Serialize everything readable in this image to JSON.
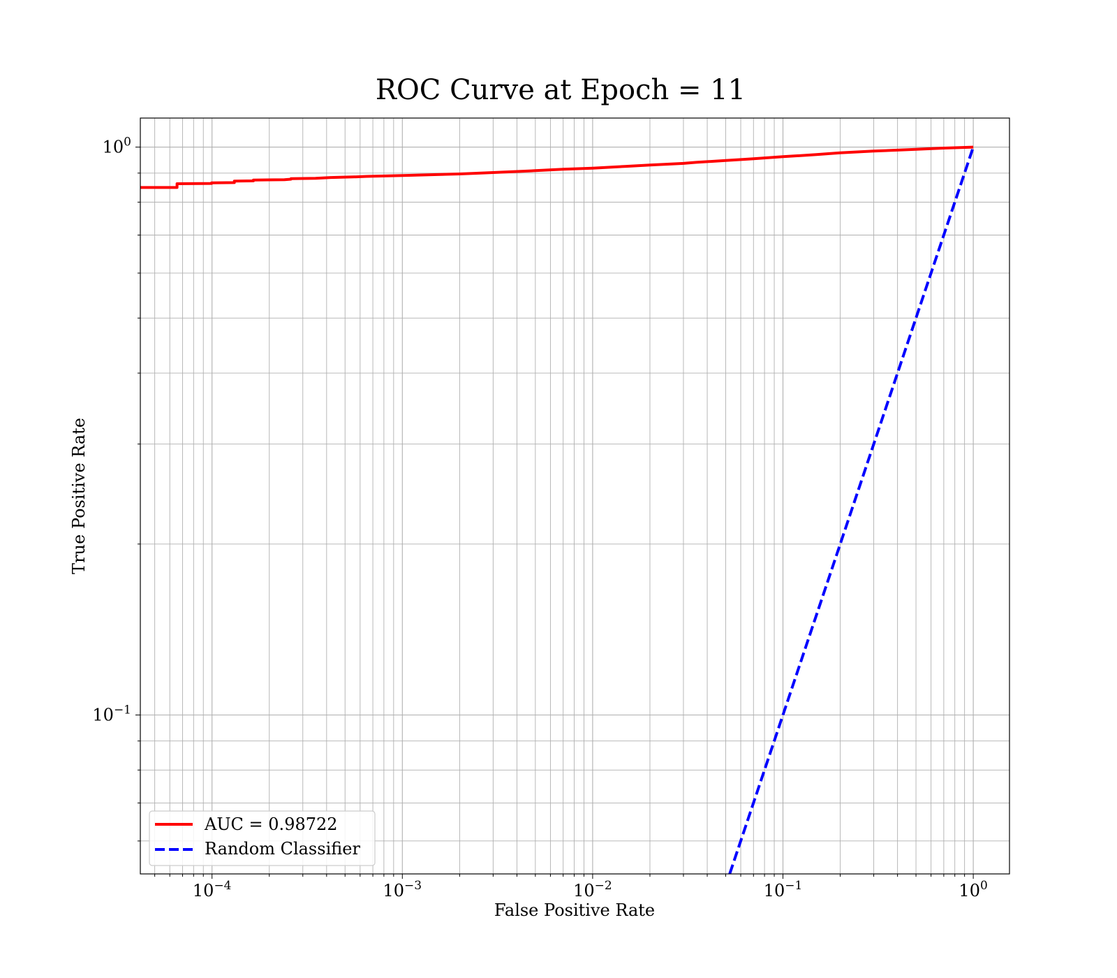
{
  "chart_data": {
    "type": "line",
    "title": "ROC Curve at Epoch = 11",
    "xlabel": "False Positive Rate",
    "ylabel": "True Positive Rate",
    "xscale": "log",
    "yscale": "log",
    "xlim": [
      4.2e-05,
      1.55
    ],
    "ylim": [
      0.0525,
      1.125
    ],
    "grid": true,
    "grid_minor": true,
    "legend_position": "lower-left",
    "x_ticks": [
      {
        "value": 0.0001,
        "base": "10",
        "exp": "−4"
      },
      {
        "value": 0.001,
        "base": "10",
        "exp": "−3"
      },
      {
        "value": 0.01,
        "base": "10",
        "exp": "−2"
      },
      {
        "value": 0.1,
        "base": "10",
        "exp": "−1"
      },
      {
        "value": 1,
        "base": "10",
        "exp": "0"
      }
    ],
    "y_ticks": [
      {
        "value": 0.1,
        "base": "10",
        "exp": "−1"
      },
      {
        "value": 1,
        "base": "10",
        "exp": "0"
      }
    ],
    "series": [
      {
        "name": "AUC = 0.98722",
        "color": "#ff0000",
        "style": "solid",
        "x": [
          4.2e-05,
          6.55e-05,
          6.55e-05,
          9.95e-05,
          9.95e-05,
          0.000131,
          0.000131,
          0.000165,
          0.000165,
          0.00024,
          0.00026,
          0.00026,
          0.00035,
          0.00042,
          0.00055,
          0.00065,
          0.001,
          0.002,
          0.003,
          0.005,
          0.007,
          0.01,
          0.015,
          0.02,
          0.03,
          0.035,
          0.05,
          0.07,
          0.1,
          0.15,
          0.2,
          0.3,
          0.5,
          0.7,
          1
        ],
        "y": [
          0.849,
          0.849,
          0.862,
          0.863,
          0.865,
          0.866,
          0.871,
          0.872,
          0.875,
          0.876,
          0.878,
          0.88,
          0.881,
          0.884,
          0.886,
          0.888,
          0.891,
          0.897,
          0.902,
          0.909,
          0.914,
          0.918,
          0.925,
          0.93,
          0.936,
          0.94,
          0.947,
          0.954,
          0.962,
          0.97,
          0.977,
          0.984,
          0.991,
          0.996,
          1.0
        ]
      },
      {
        "name": "Random Classifier",
        "color": "#0000ff",
        "style": "dashed",
        "x": [
          0.0525,
          1
        ],
        "y": [
          0.0525,
          1
        ]
      }
    ]
  }
}
